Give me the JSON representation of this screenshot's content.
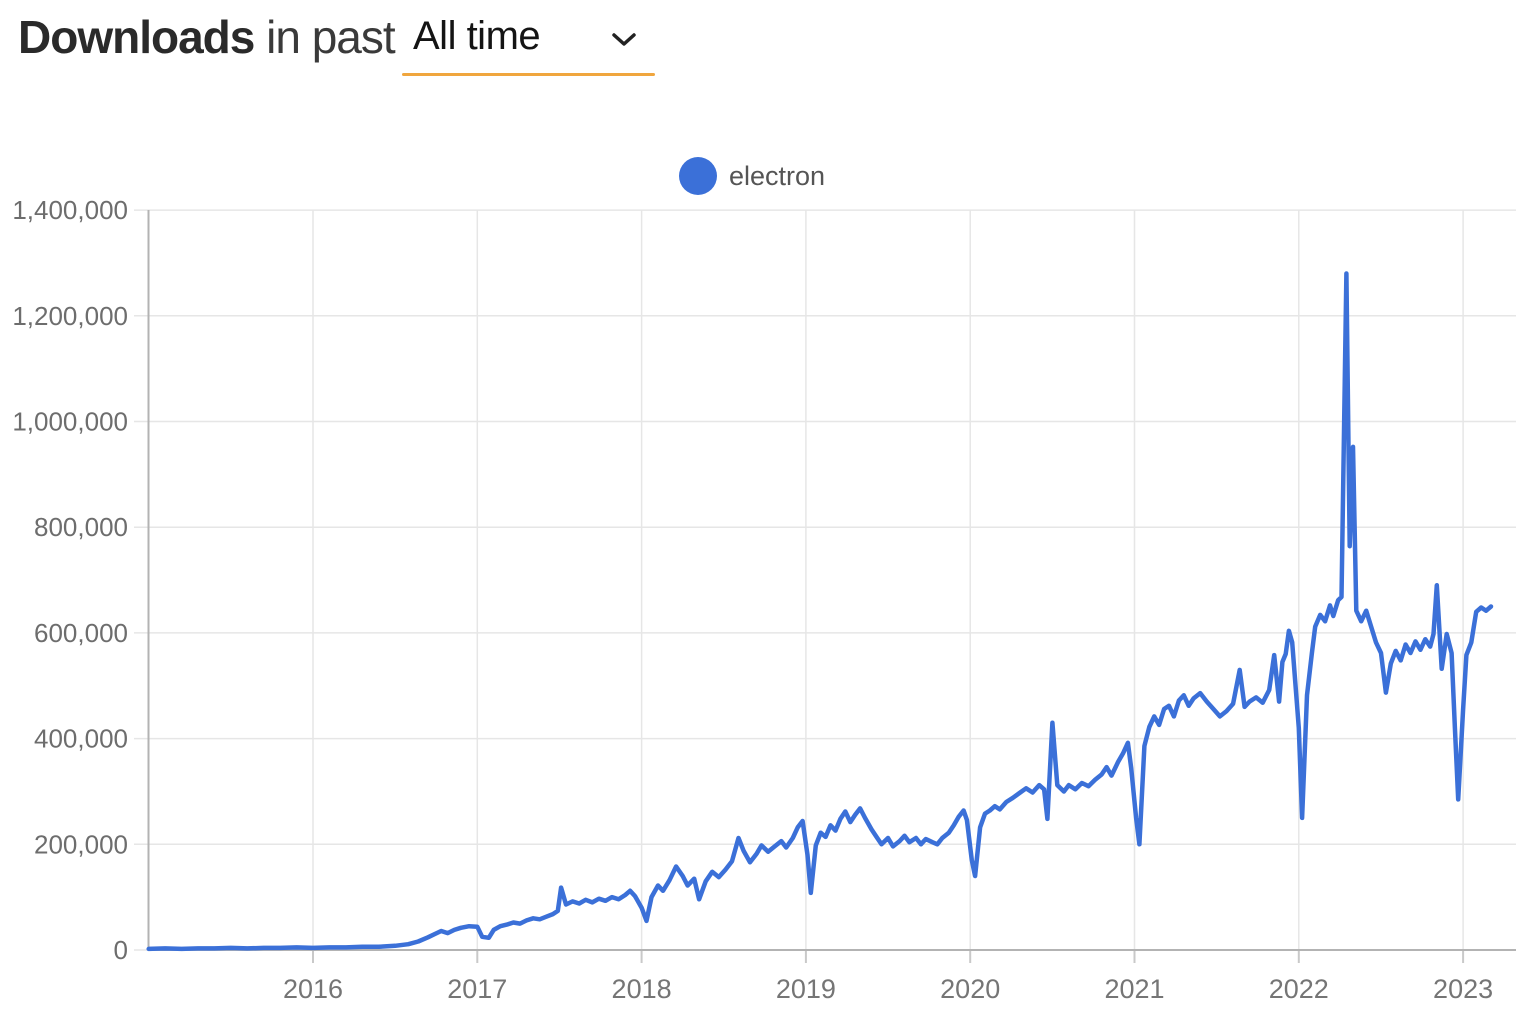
{
  "header": {
    "title_bold": "Downloads",
    "title_rest": " in past",
    "range_selector": {
      "value": "All time",
      "underline_color": "#f0a63e",
      "chevron_icon": "chevron-down-icon"
    }
  },
  "legend": {
    "series_label": "electron",
    "dot_color": "#3b70d8"
  },
  "colors": {
    "line": "#3b70d8",
    "grid": "#e6e6e6",
    "axis": "#b3b3b3",
    "tick_stub": "#c9c9c9",
    "y_label": "#6d6d6d",
    "x_label": "#757575"
  },
  "chart_data": {
    "type": "line",
    "title": "Downloads in past All time",
    "xlabel": "",
    "ylabel": "",
    "grid": true,
    "legend_position": "top-center",
    "xlim": [
      2015.0,
      2023.32
    ],
    "ylim": [
      0,
      1400000
    ],
    "x_ticks": [
      2016,
      2017,
      2018,
      2019,
      2020,
      2021,
      2022,
      2023
    ],
    "x_tick_labels": [
      "2016",
      "2017",
      "2018",
      "2019",
      "2020",
      "2021",
      "2022",
      "2023"
    ],
    "y_ticks": [
      0,
      200000,
      400000,
      600000,
      800000,
      1000000,
      1200000,
      1400000
    ],
    "y_tick_labels": [
      "0",
      "200,000",
      "400,000",
      "600,000",
      "800,000",
      "1,000,000",
      "1,200,000",
      "1,400,000"
    ],
    "series": [
      {
        "name": "electron",
        "color": "#3b70d8",
        "points": [
          [
            2015.0,
            2000
          ],
          [
            2015.1,
            3000
          ],
          [
            2015.2,
            2000
          ],
          [
            2015.3,
            3000
          ],
          [
            2015.4,
            3000
          ],
          [
            2015.5,
            4000
          ],
          [
            2015.6,
            3000
          ],
          [
            2015.7,
            4000
          ],
          [
            2015.8,
            4000
          ],
          [
            2015.9,
            5000
          ],
          [
            2016.0,
            4000
          ],
          [
            2016.1,
            5000
          ],
          [
            2016.2,
            5000
          ],
          [
            2016.3,
            6000
          ],
          [
            2016.4,
            6000
          ],
          [
            2016.5,
            8000
          ],
          [
            2016.58,
            11000
          ],
          [
            2016.64,
            16000
          ],
          [
            2016.7,
            24000
          ],
          [
            2016.74,
            30000
          ],
          [
            2016.78,
            36000
          ],
          [
            2016.82,
            32000
          ],
          [
            2016.86,
            38000
          ],
          [
            2016.9,
            42000
          ],
          [
            2016.95,
            45000
          ],
          [
            2017.0,
            44000
          ],
          [
            2017.03,
            25000
          ],
          [
            2017.07,
            23000
          ],
          [
            2017.1,
            38000
          ],
          [
            2017.14,
            45000
          ],
          [
            2017.18,
            48000
          ],
          [
            2017.22,
            52000
          ],
          [
            2017.26,
            50000
          ],
          [
            2017.3,
            56000
          ],
          [
            2017.34,
            60000
          ],
          [
            2017.38,
            58000
          ],
          [
            2017.42,
            63000
          ],
          [
            2017.46,
            68000
          ],
          [
            2017.49,
            74000
          ],
          [
            2017.51,
            118000
          ],
          [
            2017.54,
            86000
          ],
          [
            2017.58,
            92000
          ],
          [
            2017.62,
            88000
          ],
          [
            2017.66,
            95000
          ],
          [
            2017.7,
            90000
          ],
          [
            2017.74,
            97000
          ],
          [
            2017.78,
            93000
          ],
          [
            2017.82,
            100000
          ],
          [
            2017.86,
            96000
          ],
          [
            2017.9,
            104000
          ],
          [
            2017.93,
            112000
          ],
          [
            2017.96,
            102000
          ],
          [
            2018.0,
            80000
          ],
          [
            2018.03,
            55000
          ],
          [
            2018.06,
            100000
          ],
          [
            2018.1,
            122000
          ],
          [
            2018.13,
            112000
          ],
          [
            2018.17,
            132000
          ],
          [
            2018.21,
            158000
          ],
          [
            2018.25,
            140000
          ],
          [
            2018.28,
            122000
          ],
          [
            2018.32,
            135000
          ],
          [
            2018.35,
            96000
          ],
          [
            2018.39,
            130000
          ],
          [
            2018.43,
            148000
          ],
          [
            2018.47,
            138000
          ],
          [
            2018.51,
            152000
          ],
          [
            2018.55,
            168000
          ],
          [
            2018.59,
            212000
          ],
          [
            2018.62,
            188000
          ],
          [
            2018.66,
            166000
          ],
          [
            2018.7,
            182000
          ],
          [
            2018.73,
            198000
          ],
          [
            2018.77,
            186000
          ],
          [
            2018.81,
            196000
          ],
          [
            2018.85,
            206000
          ],
          [
            2018.88,
            194000
          ],
          [
            2018.92,
            212000
          ],
          [
            2018.95,
            232000
          ],
          [
            2018.98,
            244000
          ],
          [
            2019.01,
            180000
          ],
          [
            2019.03,
            108000
          ],
          [
            2019.06,
            198000
          ],
          [
            2019.09,
            222000
          ],
          [
            2019.12,
            214000
          ],
          [
            2019.15,
            236000
          ],
          [
            2019.18,
            226000
          ],
          [
            2019.21,
            248000
          ],
          [
            2019.24,
            262000
          ],
          [
            2019.27,
            242000
          ],
          [
            2019.3,
            256000
          ],
          [
            2019.33,
            268000
          ],
          [
            2019.36,
            250000
          ],
          [
            2019.4,
            228000
          ],
          [
            2019.43,
            214000
          ],
          [
            2019.46,
            200000
          ],
          [
            2019.5,
            212000
          ],
          [
            2019.53,
            196000
          ],
          [
            2019.57,
            206000
          ],
          [
            2019.6,
            216000
          ],
          [
            2019.63,
            204000
          ],
          [
            2019.67,
            212000
          ],
          [
            2019.7,
            200000
          ],
          [
            2019.73,
            210000
          ],
          [
            2019.77,
            204000
          ],
          [
            2019.8,
            200000
          ],
          [
            2019.83,
            212000
          ],
          [
            2019.87,
            222000
          ],
          [
            2019.9,
            236000
          ],
          [
            2019.93,
            252000
          ],
          [
            2019.96,
            264000
          ],
          [
            2019.98,
            246000
          ],
          [
            2020.01,
            170000
          ],
          [
            2020.03,
            140000
          ],
          [
            2020.06,
            232000
          ],
          [
            2020.09,
            258000
          ],
          [
            2020.12,
            264000
          ],
          [
            2020.15,
            272000
          ],
          [
            2020.18,
            266000
          ],
          [
            2020.22,
            280000
          ],
          [
            2020.26,
            288000
          ],
          [
            2020.3,
            297000
          ],
          [
            2020.34,
            306000
          ],
          [
            2020.38,
            298000
          ],
          [
            2020.42,
            312000
          ],
          [
            2020.45,
            304000
          ],
          [
            2020.47,
            248000
          ],
          [
            2020.5,
            430000
          ],
          [
            2020.53,
            312000
          ],
          [
            2020.57,
            300000
          ],
          [
            2020.6,
            312000
          ],
          [
            2020.64,
            304000
          ],
          [
            2020.68,
            316000
          ],
          [
            2020.72,
            310000
          ],
          [
            2020.76,
            322000
          ],
          [
            2020.8,
            332000
          ],
          [
            2020.83,
            346000
          ],
          [
            2020.86,
            330000
          ],
          [
            2020.9,
            356000
          ],
          [
            2020.93,
            372000
          ],
          [
            2020.96,
            392000
          ],
          [
            2020.98,
            344000
          ],
          [
            2021.01,
            250000
          ],
          [
            2021.03,
            200000
          ],
          [
            2021.06,
            386000
          ],
          [
            2021.09,
            422000
          ],
          [
            2021.12,
            442000
          ],
          [
            2021.15,
            426000
          ],
          [
            2021.18,
            456000
          ],
          [
            2021.21,
            462000
          ],
          [
            2021.24,
            442000
          ],
          [
            2021.27,
            472000
          ],
          [
            2021.3,
            482000
          ],
          [
            2021.33,
            462000
          ],
          [
            2021.36,
            476000
          ],
          [
            2021.4,
            486000
          ],
          [
            2021.44,
            470000
          ],
          [
            2021.48,
            456000
          ],
          [
            2021.52,
            442000
          ],
          [
            2021.56,
            452000
          ],
          [
            2021.6,
            466000
          ],
          [
            2021.64,
            530000
          ],
          [
            2021.67,
            460000
          ],
          [
            2021.7,
            470000
          ],
          [
            2021.74,
            478000
          ],
          [
            2021.78,
            468000
          ],
          [
            2021.82,
            492000
          ],
          [
            2021.85,
            558000
          ],
          [
            2021.88,
            470000
          ],
          [
            2021.9,
            545000
          ],
          [
            2021.92,
            560000
          ],
          [
            2021.94,
            604000
          ],
          [
            2021.96,
            582000
          ],
          [
            2022.0,
            420000
          ],
          [
            2022.02,
            250000
          ],
          [
            2022.05,
            482000
          ],
          [
            2022.08,
            562000
          ],
          [
            2022.1,
            612000
          ],
          [
            2022.13,
            634000
          ],
          [
            2022.16,
            622000
          ],
          [
            2022.19,
            652000
          ],
          [
            2022.21,
            632000
          ],
          [
            2022.24,
            662000
          ],
          [
            2022.26,
            668000
          ],
          [
            2022.29,
            1280000
          ],
          [
            2022.31,
            764000
          ],
          [
            2022.33,
            952000
          ],
          [
            2022.35,
            642000
          ],
          [
            2022.38,
            622000
          ],
          [
            2022.41,
            642000
          ],
          [
            2022.44,
            612000
          ],
          [
            2022.47,
            582000
          ],
          [
            2022.5,
            562000
          ],
          [
            2022.53,
            487000
          ],
          [
            2022.56,
            542000
          ],
          [
            2022.59,
            566000
          ],
          [
            2022.62,
            548000
          ],
          [
            2022.65,
            578000
          ],
          [
            2022.68,
            562000
          ],
          [
            2022.71,
            584000
          ],
          [
            2022.74,
            568000
          ],
          [
            2022.77,
            588000
          ],
          [
            2022.8,
            574000
          ],
          [
            2022.82,
            598000
          ],
          [
            2022.84,
            690000
          ],
          [
            2022.87,
            532000
          ],
          [
            2022.9,
            598000
          ],
          [
            2022.93,
            562000
          ],
          [
            2022.95,
            420000
          ],
          [
            2022.97,
            285000
          ],
          [
            2023.0,
            455000
          ],
          [
            2023.02,
            558000
          ],
          [
            2023.05,
            582000
          ],
          [
            2023.08,
            640000
          ],
          [
            2023.11,
            648000
          ],
          [
            2023.14,
            642000
          ],
          [
            2023.17,
            650000
          ]
        ]
      }
    ]
  }
}
